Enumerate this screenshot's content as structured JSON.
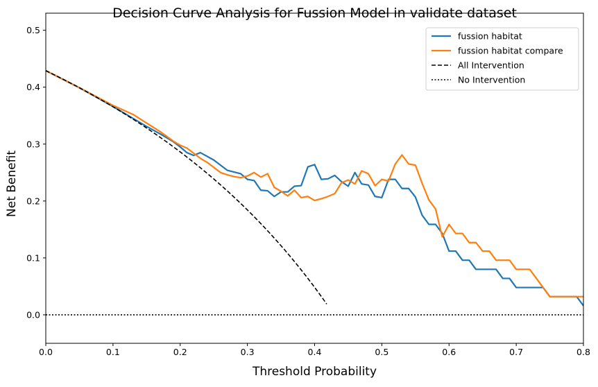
{
  "chart_data": {
    "type": "line",
    "title": "Decision Curve Analysis for Fussion Model in validate dataset",
    "xlabel": "Threshold Probability",
    "ylabel": "Net Benefit",
    "xlim": [
      0.0,
      0.8
    ],
    "ylim": [
      -0.05,
      0.53
    ],
    "xticks": [
      0.0,
      0.1,
      0.2,
      0.3,
      0.4,
      0.5,
      0.6,
      0.7,
      0.8
    ],
    "xtick_labels": [
      "0.0",
      "0.1",
      "0.2",
      "0.3",
      "0.4",
      "0.5",
      "0.6",
      "0.7",
      "0.8"
    ],
    "yticks": [
      0.0,
      0.1,
      0.2,
      0.3,
      0.4,
      0.5
    ],
    "ytick_labels": [
      "0.0",
      "0.1",
      "0.2",
      "0.3",
      "0.4",
      "0.5"
    ],
    "grid": false,
    "legend_position": "top-right",
    "series": [
      {
        "name": "fussion habitat",
        "color": "#1f77b4",
        "style": "solid",
        "points": [
          [
            0.0,
            0.429
          ],
          [
            0.05,
            0.399
          ],
          [
            0.1,
            0.366
          ],
          [
            0.15,
            0.331
          ],
          [
            0.17,
            0.318
          ],
          [
            0.19,
            0.304
          ],
          [
            0.2,
            0.295
          ],
          [
            0.21,
            0.285
          ],
          [
            0.22,
            0.28
          ],
          [
            0.23,
            0.285
          ],
          [
            0.25,
            0.272
          ],
          [
            0.27,
            0.254
          ],
          [
            0.29,
            0.248
          ],
          [
            0.3,
            0.238
          ],
          [
            0.31,
            0.236
          ],
          [
            0.32,
            0.219
          ],
          [
            0.33,
            0.218
          ],
          [
            0.34,
            0.208
          ],
          [
            0.35,
            0.216
          ],
          [
            0.36,
            0.216
          ],
          [
            0.37,
            0.226
          ],
          [
            0.38,
            0.227
          ],
          [
            0.39,
            0.26
          ],
          [
            0.4,
            0.264
          ],
          [
            0.41,
            0.238
          ],
          [
            0.42,
            0.239
          ],
          [
            0.43,
            0.245
          ],
          [
            0.44,
            0.234
          ],
          [
            0.45,
            0.226
          ],
          [
            0.46,
            0.25
          ],
          [
            0.47,
            0.23
          ],
          [
            0.48,
            0.228
          ],
          [
            0.49,
            0.208
          ],
          [
            0.5,
            0.206
          ],
          [
            0.51,
            0.238
          ],
          [
            0.52,
            0.238
          ],
          [
            0.53,
            0.222
          ],
          [
            0.54,
            0.222
          ],
          [
            0.55,
            0.207
          ],
          [
            0.56,
            0.175
          ],
          [
            0.57,
            0.159
          ],
          [
            0.58,
            0.159
          ],
          [
            0.59,
            0.143
          ],
          [
            0.6,
            0.112
          ],
          [
            0.61,
            0.112
          ],
          [
            0.62,
            0.096
          ],
          [
            0.63,
            0.096
          ],
          [
            0.64,
            0.08
          ],
          [
            0.65,
            0.08
          ],
          [
            0.66,
            0.08
          ],
          [
            0.67,
            0.08
          ],
          [
            0.68,
            0.064
          ],
          [
            0.69,
            0.064
          ],
          [
            0.7,
            0.048
          ],
          [
            0.71,
            0.048
          ],
          [
            0.72,
            0.048
          ],
          [
            0.73,
            0.048
          ],
          [
            0.74,
            0.048
          ],
          [
            0.75,
            0.032
          ],
          [
            0.76,
            0.032
          ],
          [
            0.77,
            0.032
          ],
          [
            0.78,
            0.032
          ],
          [
            0.79,
            0.032
          ],
          [
            0.8,
            0.016
          ]
        ]
      },
      {
        "name": "fussion habitat compare",
        "color": "#ff7f0e",
        "style": "solid",
        "points": [
          [
            0.0,
            0.429
          ],
          [
            0.05,
            0.399
          ],
          [
            0.1,
            0.368
          ],
          [
            0.13,
            0.352
          ],
          [
            0.15,
            0.337
          ],
          [
            0.17,
            0.322
          ],
          [
            0.19,
            0.305
          ],
          [
            0.2,
            0.298
          ],
          [
            0.21,
            0.293
          ],
          [
            0.22,
            0.284
          ],
          [
            0.23,
            0.275
          ],
          [
            0.24,
            0.268
          ],
          [
            0.25,
            0.259
          ],
          [
            0.26,
            0.25
          ],
          [
            0.27,
            0.246
          ],
          [
            0.28,
            0.243
          ],
          [
            0.29,
            0.241
          ],
          [
            0.3,
            0.244
          ],
          [
            0.31,
            0.25
          ],
          [
            0.32,
            0.242
          ],
          [
            0.33,
            0.248
          ],
          [
            0.34,
            0.224
          ],
          [
            0.35,
            0.217
          ],
          [
            0.36,
            0.209
          ],
          [
            0.37,
            0.219
          ],
          [
            0.38,
            0.206
          ],
          [
            0.39,
            0.208
          ],
          [
            0.4,
            0.201
          ],
          [
            0.41,
            0.204
          ],
          [
            0.42,
            0.208
          ],
          [
            0.43,
            0.213
          ],
          [
            0.44,
            0.232
          ],
          [
            0.45,
            0.237
          ],
          [
            0.46,
            0.23
          ],
          [
            0.47,
            0.253
          ],
          [
            0.48,
            0.248
          ],
          [
            0.49,
            0.227
          ],
          [
            0.5,
            0.238
          ],
          [
            0.51,
            0.235
          ],
          [
            0.52,
            0.265
          ],
          [
            0.53,
            0.281
          ],
          [
            0.54,
            0.265
          ],
          [
            0.55,
            0.263
          ],
          [
            0.56,
            0.231
          ],
          [
            0.57,
            0.202
          ],
          [
            0.58,
            0.186
          ],
          [
            0.59,
            0.137
          ],
          [
            0.6,
            0.159
          ],
          [
            0.61,
            0.143
          ],
          [
            0.62,
            0.143
          ],
          [
            0.63,
            0.127
          ],
          [
            0.64,
            0.127
          ],
          [
            0.65,
            0.112
          ],
          [
            0.66,
            0.112
          ],
          [
            0.67,
            0.096
          ],
          [
            0.68,
            0.096
          ],
          [
            0.69,
            0.096
          ],
          [
            0.7,
            0.08
          ],
          [
            0.71,
            0.08
          ],
          [
            0.72,
            0.08
          ],
          [
            0.73,
            0.064
          ],
          [
            0.74,
            0.048
          ],
          [
            0.75,
            0.032
          ],
          [
            0.76,
            0.032
          ],
          [
            0.77,
            0.032
          ],
          [
            0.78,
            0.032
          ],
          [
            0.79,
            0.032
          ],
          [
            0.8,
            0.032
          ]
        ]
      },
      {
        "name": "All Intervention",
        "color": "#000000",
        "style": "dashed",
        "prevalence": 0.429,
        "x_end": 0.418
      },
      {
        "name": "No Intervention",
        "color": "#000000",
        "style": "dotted",
        "points": [
          [
            0.0,
            0.0
          ],
          [
            0.8,
            0.0
          ]
        ]
      }
    ]
  }
}
